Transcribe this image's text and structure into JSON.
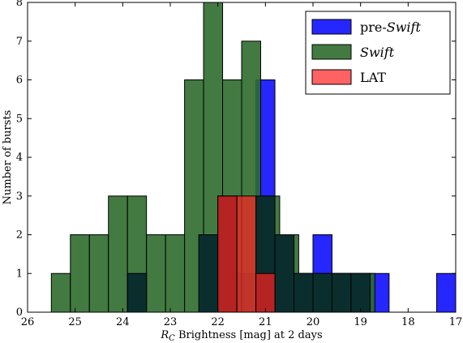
{
  "chart_data": {
    "type": "bar",
    "title": "",
    "xlabel_main": "R",
    "xlabel_sub": "C",
    "xlabel_rest": " Brightness [mag] at 2 days",
    "ylabel": "Number of bursts",
    "xlim": [
      26,
      17
    ],
    "ylim": [
      0,
      8
    ],
    "x_inverted": true,
    "xticks": [
      26,
      25,
      24,
      23,
      22,
      21,
      20,
      19,
      18,
      17
    ],
    "yticks": [
      0,
      1,
      2,
      3,
      4,
      5,
      6,
      7,
      8
    ],
    "legend_position": "top-right",
    "bin_width": 0.4,
    "series": [
      {
        "name": "pre-Swift",
        "legend_prefix": "pre-",
        "legend_italic": "Swift",
        "color": "#0000ff",
        "alpha": 0.85,
        "bins": [
          {
            "x": 22.4,
            "value": 2
          },
          {
            "x": 22.0,
            "value": 3
          },
          {
            "x": 21.6,
            "value": 1
          },
          {
            "x": 21.2,
            "value": 6
          },
          {
            "x": 20.8,
            "value": 2
          },
          {
            "x": 20.4,
            "value": 1
          },
          {
            "x": 20.0,
            "value": 2
          },
          {
            "x": 19.6,
            "value": 1
          },
          {
            "x": 19.2,
            "value": 1
          },
          {
            "x": 18.8,
            "value": 1
          },
          {
            "x": 17.4,
            "value": 1
          }
        ]
      },
      {
        "name": "Swift",
        "legend_prefix": "",
        "legend_italic": "Swift",
        "color": "#2e6b2e",
        "alpha": 0.9,
        "bins": [
          {
            "x": 25.5,
            "value": 1
          },
          {
            "x": 25.1,
            "value": 2
          },
          {
            "x": 24.7,
            "value": 2
          },
          {
            "x": 24.3,
            "value": 3
          },
          {
            "x": 23.9,
            "value": 3
          },
          {
            "x": 23.5,
            "value": 2
          },
          {
            "x": 23.1,
            "value": 2
          },
          {
            "x": 22.7,
            "value": 6
          },
          {
            "x": 22.3,
            "value": 8
          },
          {
            "x": 21.9,
            "value": 6
          },
          {
            "x": 21.5,
            "value": 7
          },
          {
            "x": 21.1,
            "value": 3
          },
          {
            "x": 20.7,
            "value": 2
          },
          {
            "x": 20.3,
            "value": 1
          },
          {
            "x": 19.9,
            "value": 1
          },
          {
            "x": 19.5,
            "value": 1
          },
          {
            "x": 19.1,
            "value": 1
          }
        ]
      },
      {
        "name": "LAT",
        "legend_prefix": "LAT",
        "legend_italic": "",
        "color": "#ff2020",
        "alpha": 0.7,
        "bins": [
          {
            "x": 22.0,
            "value": 3
          },
          {
            "x": 21.6,
            "value": 3
          },
          {
            "x": 21.2,
            "value": 1
          }
        ]
      }
    ],
    "dark_overlap_bins": [
      {
        "x": 23.9,
        "value": 1
      },
      {
        "x": 22.4,
        "value": 2
      },
      {
        "x": 22.0,
        "value": 3
      },
      {
        "x": 21.2,
        "value": 3
      },
      {
        "x": 20.8,
        "value": 2
      },
      {
        "x": 20.4,
        "value": 1
      },
      {
        "x": 20.0,
        "value": 1
      },
      {
        "x": 19.6,
        "value": 1
      },
      {
        "x": 19.2,
        "value": 1
      }
    ]
  }
}
